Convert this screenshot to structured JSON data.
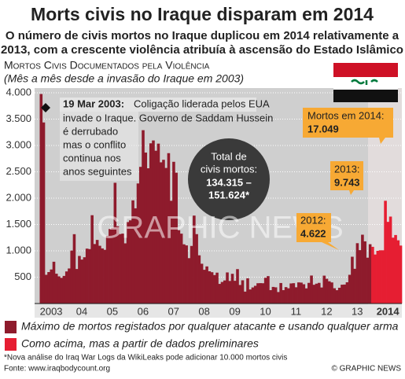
{
  "chart_data": {
    "type": "bar",
    "title": "Morts civis no Iraque disparam em 2014",
    "subtitle": [
      "O número de civis mortos no Iraque duplicou em 2014 relativamente a",
      "2013, com a crescente violência atribuía à ascensão do Estado Islâmico"
    ],
    "chart_title": "Mortos Civis Documentados pela Violência",
    "chart_subtitle": "(Mês a mês desde a invasão do Iraque em 2003)",
    "annotation": {
      "date": "19 Mar 2003:",
      "lines": [
        "Coligação liderada pelos EUA",
        "invade o Iraque. Governo de Saddam Hussein",
        "é derrubado",
        "mas o conflito",
        "continua nos",
        "anos seguintes"
      ]
    },
    "total": {
      "label": [
        "Total de",
        "civis mortos:"
      ],
      "value": [
        "134.315 –",
        "151.624*"
      ]
    },
    "callouts": [
      {
        "label": "Mortos em 2014:",
        "value": "17.049"
      },
      {
        "label": "2013:",
        "value": "9.743"
      },
      {
        "label": "2012:",
        "value": "4.622"
      }
    ],
    "watermark": "GRAPHIC NEWS",
    "footnote": "*Nova análise do Iraq War Logs da WikiLeaks pode adicionar 10.000 mortos civis",
    "source": "Fonte: www.iraqbodycount.org",
    "credit": "© GRAPHIC NEWS",
    "categories": [
      null,
      null,
      null,
      null,
      null,
      null,
      "2003",
      null,
      null,
      null,
      null,
      null,
      null,
      null,
      null,
      null,
      null,
      null,
      "04",
      null,
      null,
      null,
      null,
      null,
      null,
      null,
      null,
      null,
      null,
      null,
      "05",
      null,
      null,
      null,
      null,
      null,
      null,
      null,
      null,
      null,
      null,
      null,
      "06",
      null,
      null,
      null,
      null,
      null,
      null,
      null,
      null,
      null,
      null,
      null,
      "07",
      null,
      null,
      null,
      null,
      null,
      null,
      null,
      null,
      null,
      null,
      null,
      "08",
      null,
      null,
      null,
      null,
      null,
      null,
      null,
      null,
      null,
      null,
      null,
      "09",
      null,
      null,
      null,
      null,
      null,
      null,
      null,
      null,
      null,
      null,
      null,
      "10",
      null,
      null,
      null,
      null,
      null,
      null,
      null,
      null,
      null,
      null,
      null,
      "11",
      null,
      null,
      null,
      null,
      null,
      null,
      null,
      null,
      null,
      null,
      null,
      "12",
      null,
      null,
      null,
      null,
      null,
      null,
      null,
      null,
      null,
      null,
      null,
      "13",
      null,
      null,
      null,
      null,
      null,
      null,
      null,
      null,
      null,
      null,
      null,
      "2014",
      null,
      null,
      null,
      null,
      null
    ],
    "series": [
      {
        "name": "Máximo de mortos registados por qualquer atacante e usando qualquer arma",
        "color": "#8e1b2c",
        "values": [
          null,
          null,
          3977,
          3437,
          545,
          597,
          646,
          793,
          566,
          515,
          487,
          524,
          609,
          665,
          1005,
          1316,
          655,
          903,
          834,
          878,
          1042,
          1033,
          1676,
          1129,
          1207,
          1096,
          1046,
          1019,
          1285,
          1415,
          1436,
          2292,
          1466,
          1318,
          1327,
          1142,
          1546,
          1579,
          1958,
          1807,
          2279,
          2594,
          3290,
          2865,
          2567,
          3041,
          3095,
          2900,
          3035,
          2680,
          2728,
          2573,
          2854,
          1950,
          2690,
          2483,
          1391,
          1326,
          1124,
          1103,
          861,
          1093,
          1669,
          1317,
          915,
          755,
          640,
          704,
          612,
          594,
          540,
          586,
          372,
          409,
          438,
          590,
          428,
          564,
          431,
          653,
          352,
          441,
          226,
          478,
          267,
          305,
          336,
          385,
          387,
          385,
          488,
          520,
          254,
          315,
          307,
          218,
          389,
          254,
          311,
          289,
          381,
          386,
          308,
          401,
          397,
          366,
          288,
          392,
          531,
          356,
          377,
          392,
          304,
          529,
          469,
          422,
          400,
          290,
          253,
          299,
          357,
          360,
          403,
          545,
          888,
          659,
          1145,
          1013,
          1306,
          1180,
          870,
          1126,
          null,
          null,
          null,
          null,
          null,
          null,
          null,
          null,
          null,
          null,
          null,
          null
        ]
      },
      {
        "name": "Como acima, mas a partir de dados preliminares",
        "color": "#e61e32",
        "values": [
          null,
          null,
          null,
          null,
          null,
          null,
          null,
          null,
          null,
          null,
          null,
          null,
          null,
          null,
          null,
          null,
          null,
          null,
          null,
          null,
          null,
          null,
          null,
          null,
          null,
          null,
          null,
          null,
          null,
          null,
          null,
          null,
          null,
          null,
          null,
          null,
          null,
          null,
          null,
          null,
          null,
          null,
          null,
          null,
          null,
          null,
          null,
          null,
          null,
          null,
          null,
          null,
          null,
          null,
          null,
          null,
          null,
          null,
          null,
          null,
          null,
          null,
          null,
          null,
          null,
          null,
          null,
          null,
          null,
          null,
          null,
          null,
          null,
          null,
          null,
          null,
          null,
          null,
          null,
          null,
          null,
          null,
          null,
          null,
          null,
          null,
          null,
          null,
          null,
          null,
          null,
          null,
          null,
          null,
          null,
          null,
          null,
          null,
          null,
          null,
          null,
          null,
          null,
          null,
          null,
          null,
          null,
          null,
          null,
          null,
          null,
          null,
          null,
          null,
          null,
          null,
          null,
          null,
          null,
          null,
          null,
          null,
          null,
          null,
          null,
          null,
          null,
          null,
          null,
          null,
          null,
          null,
          1076,
          930,
          1000,
          1010,
          1010,
          1950,
          1550,
          1650,
          1250,
          1300,
          1200,
          1100
        ]
      }
    ],
    "ylim": [
      0,
      4000
    ],
    "yticks": [
      500,
      {
        "value": 1000,
        "label": "1.000"
      },
      {
        "value": 1500,
        "label": "1.500"
      },
      {
        "value": 2000,
        "label": "2.000"
      },
      {
        "value": 2500,
        "label": "2.500"
      },
      {
        "value": 3000,
        "label": "3.000"
      },
      {
        "value": 3500,
        "label": "3.500"
      },
      {
        "value": 4000,
        "label": "4.000"
      }
    ],
    "grid": true
  }
}
